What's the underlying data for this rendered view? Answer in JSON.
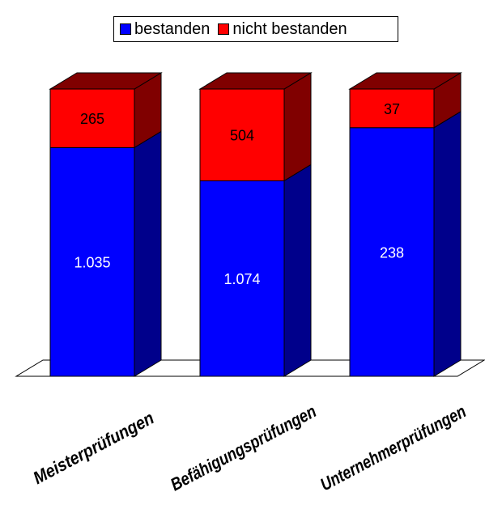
{
  "chart_data": {
    "type": "bar",
    "stacked": true,
    "three_d": true,
    "categories": [
      "Meisterprüfungen",
      "Befähigungsprüfungen",
      "Unternehmerprüfungen"
    ],
    "series": [
      {
        "name": "bestanden",
        "color": "#0000ff",
        "side_color": "#00008b",
        "values": [
          1035,
          1074,
          238
        ],
        "labels": [
          "1.035",
          "1.074",
          "238"
        ]
      },
      {
        "name": "nicht bestanden",
        "color": "#ff0000",
        "side_color": "#800000",
        "values": [
          265,
          504,
          37
        ],
        "labels": [
          "265",
          "504",
          "37"
        ]
      }
    ],
    "normalized": true,
    "legend_position": "top",
    "grid": false,
    "title": "",
    "xlabel": "",
    "ylabel": ""
  }
}
